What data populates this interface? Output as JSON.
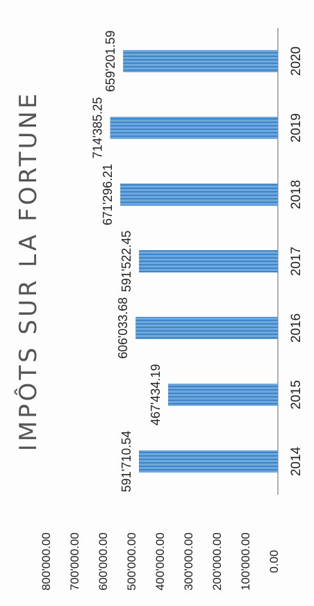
{
  "chart_data": {
    "type": "bar",
    "title": "IMPÔTS SUR LA FORTUNE",
    "categories": [
      "2014",
      "2015",
      "2016",
      "2017",
      "2018",
      "2019",
      "2020"
    ],
    "values": [
      591710.54,
      467434.19,
      606033.68,
      591522.45,
      671296.21,
      714385.25,
      659201.59
    ],
    "value_labels": [
      "591'710.54",
      "467'434.19",
      "606'033.68",
      "591'522.45",
      "671'296.21",
      "714'385.25",
      "659'201.59"
    ],
    "y_ticks": [
      0,
      100000,
      200000,
      300000,
      400000,
      500000,
      600000,
      700000,
      800000
    ],
    "y_tick_labels": [
      "0.00",
      "100'000.00",
      "200'000.00",
      "300'000.00",
      "400'000.00",
      "500'000.00",
      "600'000.00",
      "700'000.00",
      "800'000.00"
    ],
    "ylim": [
      0,
      800000
    ],
    "xlabel": "",
    "ylabel": "",
    "grid": false,
    "bar_color": "#5b9bd5",
    "orientation": "rotated-90-clockwise"
  }
}
